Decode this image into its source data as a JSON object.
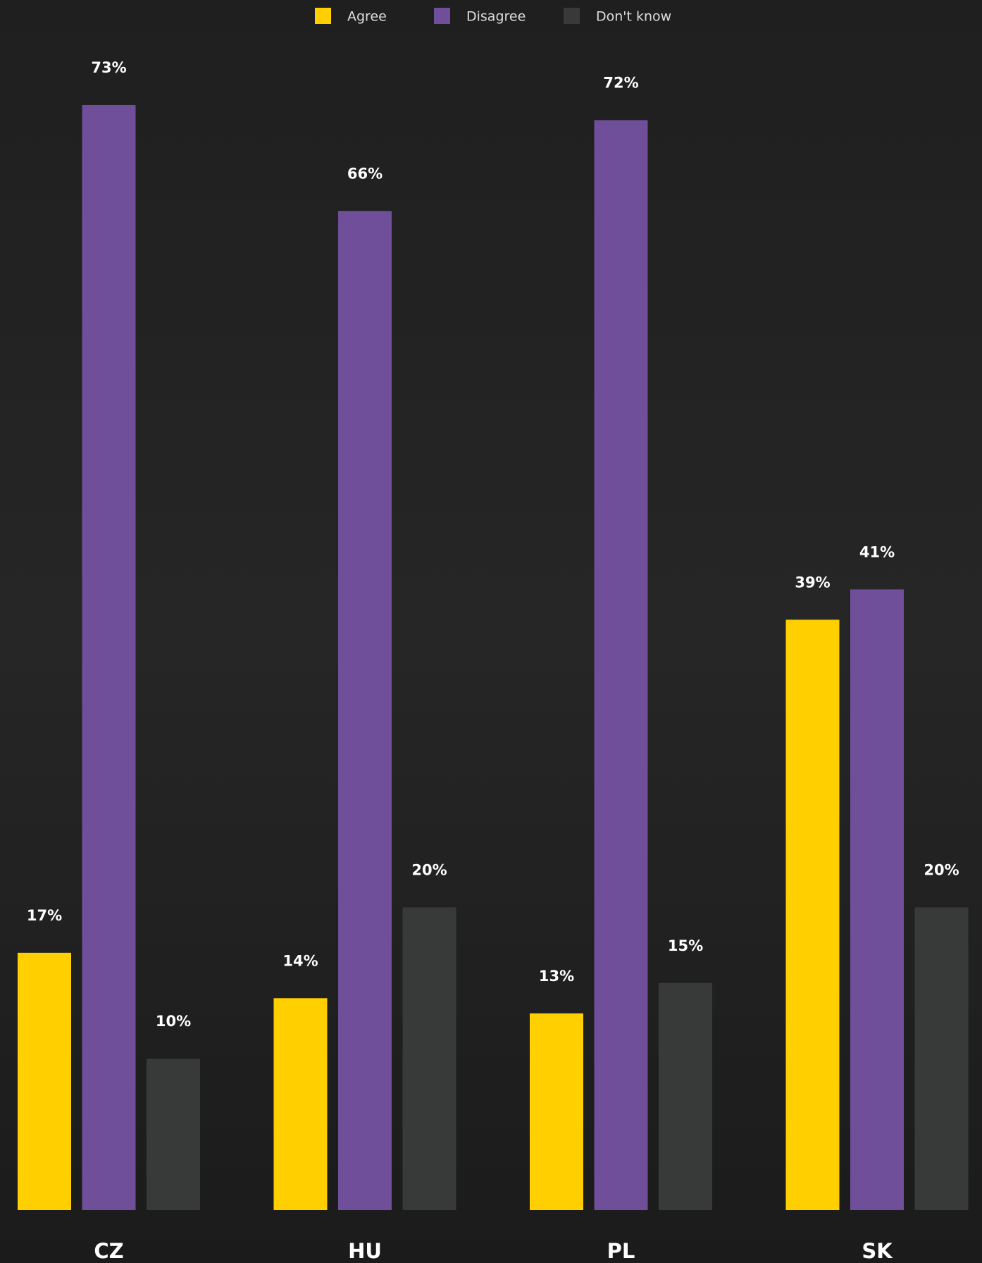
{
  "chart_data": {
    "type": "bar",
    "categories": [
      "CZ",
      "HU",
      "PL",
      "SK"
    ],
    "series": [
      {
        "name": "Agree",
        "color": "#ffcf00",
        "values": [
          17,
          14,
          13,
          39
        ],
        "value_labels": [
          "17%",
          "14%",
          "13%",
          "39%"
        ]
      },
      {
        "name": "Disagree",
        "color": "#6f4e9a",
        "values": [
          73,
          66,
          72,
          41
        ],
        "value_labels": [
          "73%",
          "66%",
          "72%",
          "41%"
        ]
      },
      {
        "name": "Don't know",
        "color": "#383a39",
        "values": [
          10,
          20,
          15,
          20
        ],
        "value_labels": [
          "10%",
          "20%",
          "15%",
          "20%"
        ]
      }
    ]
  }
}
